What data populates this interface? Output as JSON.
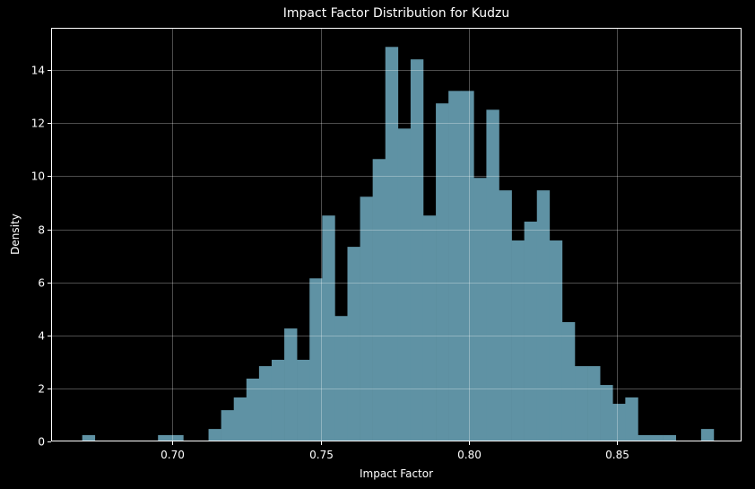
{
  "chart_data": {
    "type": "bar",
    "subtype": "histogram",
    "title": "Impact Factor Distribution for Kudzu",
    "xlabel": "Impact Factor",
    "ylabel": "Density",
    "xlim": [
      0.659,
      0.892
    ],
    "ylim": [
      0,
      15.6
    ],
    "x_ticks": [
      "0.70",
      "0.75",
      "0.80",
      "0.85"
    ],
    "x_tick_values": [
      0.7,
      0.75,
      0.8,
      0.85
    ],
    "y_ticks": [
      "0",
      "2",
      "4",
      "6",
      "8",
      "10",
      "12",
      "14"
    ],
    "y_tick_values": [
      0,
      2,
      4,
      6,
      8,
      10,
      12,
      14
    ],
    "grid": true,
    "bar_color": "#5f92a4",
    "bin_start": 0.6695,
    "bin_width": 0.004262,
    "bins": 50,
    "values": [
      0.24,
      0,
      0,
      0,
      0,
      0,
      0.24,
      0.24,
      0,
      0,
      0.47,
      1.18,
      1.66,
      2.37,
      2.84,
      3.08,
      4.26,
      3.08,
      6.15,
      8.52,
      4.73,
      7.34,
      9.23,
      10.65,
      14.88,
      11.8,
      14.41,
      8.52,
      12.75,
      13.22,
      13.22,
      9.94,
      12.51,
      9.47,
      7.58,
      8.29,
      9.47,
      7.58,
      4.5,
      2.84,
      2.84,
      2.13,
      1.42,
      1.66,
      0.24,
      0.24,
      0.24,
      0,
      0,
      0.47
    ]
  }
}
